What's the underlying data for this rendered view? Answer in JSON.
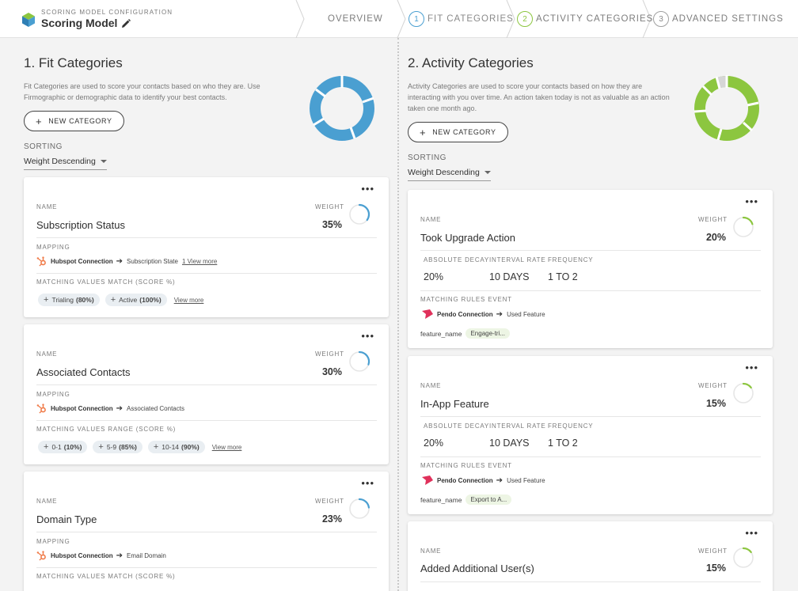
{
  "header": {
    "kicker": "SCORING MODEL CONFIGURATION",
    "title": "Scoring Model",
    "steps": [
      {
        "num": "",
        "label": "OVERVIEW"
      },
      {
        "num": "1",
        "label": "FIT CATEGORIES"
      },
      {
        "num": "2",
        "label": "ACTIVITY CATEGORIES"
      },
      {
        "num": "3",
        "label": "ADVANCED SETTINGS"
      }
    ]
  },
  "colors": {
    "fit_accent": "#4a9fd1",
    "activity_accent": "#8cc63f",
    "hubspot": "#f07c4a",
    "pendo": "#e0315b"
  },
  "fit": {
    "title": "1. Fit Categories",
    "description": "Fit Categories are used to score your contacts based on who they are. Use Firmographic or demographic data to identify your best contacts.",
    "new_button": "NEW CATEGORY",
    "sorting_label": "SORTING",
    "sorting_value": "Weight Descending",
    "cards": [
      {
        "name_label": "NAME",
        "name": "Subscription Status",
        "weight_label": "WEIGHT",
        "weight": "35%",
        "weight_fraction": 0.35,
        "mapping_label": "MAPPING",
        "connection": "Hubspot Connection",
        "field": "Subscription State",
        "mapping_more": "1 View more",
        "values_label": "MATCHING VALUES MATCH (SCORE %)",
        "chips": [
          {
            "label": "Trialing",
            "score": "(80%)"
          },
          {
            "label": "Active",
            "score": "(100%)"
          }
        ],
        "chips_more": "View more"
      },
      {
        "name_label": "NAME",
        "name": "Associated Contacts",
        "weight_label": "WEIGHT",
        "weight": "30%",
        "weight_fraction": 0.3,
        "mapping_label": "MAPPING",
        "connection": "Hubspot Connection",
        "field": "Associated Contacts",
        "mapping_more": "",
        "values_label": "MATCHING VALUES RANGE (SCORE %)",
        "chips": [
          {
            "label": "0-1",
            "score": "(10%)"
          },
          {
            "label": "5-9",
            "score": "(85%)"
          },
          {
            "label": "10-14",
            "score": "(90%)"
          }
        ],
        "chips_more": "View more"
      },
      {
        "name_label": "NAME",
        "name": "Domain Type",
        "weight_label": "WEIGHT",
        "weight": "23%",
        "weight_fraction": 0.23,
        "mapping_label": "MAPPING",
        "connection": "Hubspot Connection",
        "field": "Email Domain",
        "mapping_more": "",
        "values_label": "MATCHING VALUES MATCH (SCORE %)",
        "chips": [],
        "chips_more": ""
      }
    ]
  },
  "activity": {
    "title": "2. Activity Categories",
    "description": "Activity Categories are used to score your contacts based on how they are interacting with you over time. An action taken today is not as valuable as an action taken one month ago.",
    "new_button": "NEW CATEGORY",
    "sorting_label": "SORTING",
    "sorting_value": "Weight Descending",
    "cards": [
      {
        "name_label": "NAME",
        "name": "Took Upgrade Action",
        "weight_label": "WEIGHT",
        "weight": "20%",
        "weight_fraction": 0.2,
        "decay_label": "ABSOLUTE DECAY",
        "decay": "20%",
        "interval_label": "INTERVAL RATE",
        "interval": "10 DAYS",
        "frequency_label": "FREQUENCY",
        "frequency": "1 TO 2",
        "rules_label": "MATCHING RULES EVENT",
        "connection": "Pendo Connection",
        "event": "Used Feature",
        "feature_key": "feature_name",
        "feature_value": "Engage-tri..."
      },
      {
        "name_label": "NAME",
        "name": "In-App Feature",
        "weight_label": "WEIGHT",
        "weight": "15%",
        "weight_fraction": 0.15,
        "decay_label": "ABSOLUTE DECAY",
        "decay": "20%",
        "interval_label": "INTERVAL RATE",
        "interval": "10 DAYS",
        "frequency_label": "FREQUENCY",
        "frequency": "1 TO 2",
        "rules_label": "MATCHING RULES EVENT",
        "connection": "Pendo Connection",
        "event": "Used Feature",
        "feature_key": "feature_name",
        "feature_value": "Export to A..."
      },
      {
        "name_label": "NAME",
        "name": "Added Additional User(s)",
        "weight_label": "WEIGHT",
        "weight": "15%",
        "weight_fraction": 0.15
      }
    ]
  }
}
